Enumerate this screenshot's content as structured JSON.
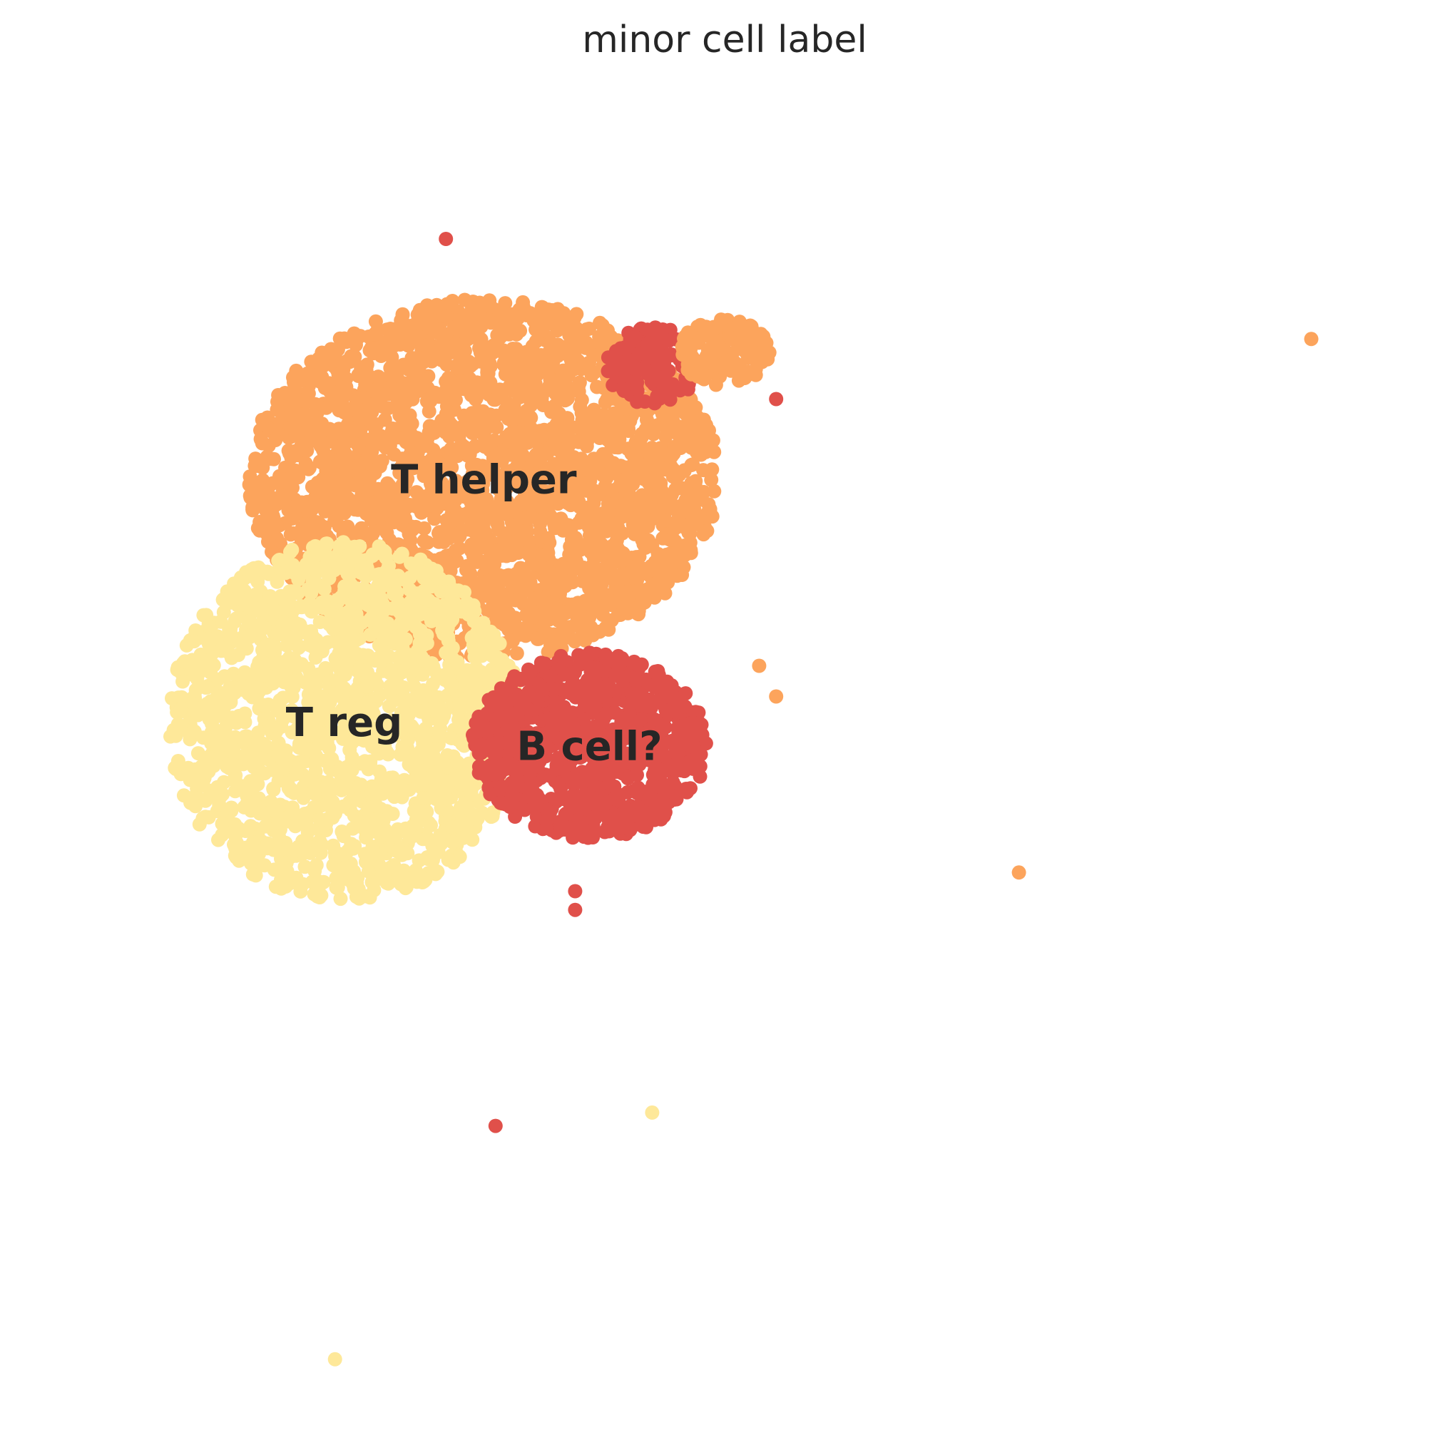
{
  "chart_data": {
    "type": "scatter",
    "title": "minor cell label",
    "xlabel": "",
    "ylabel": "",
    "xlim": [
      0,
      100
    ],
    "ylim": [
      0,
      100
    ],
    "grid": false,
    "axes_visible": false,
    "legend": "on-data",
    "colors": {
      "T helper": "#fca45c",
      "T reg": "#fee899",
      "B cell?": "#e0504a"
    },
    "clusters": [
      {
        "label": "T helper",
        "color": "#fca45c",
        "center": [
          31.6,
          70.5
        ],
        "spread": [
          18.0,
          13.5
        ],
        "count": 2600
      },
      {
        "label": "T reg",
        "color": "#fee899",
        "center": [
          20.9,
          52.3
        ],
        "spread": [
          13.5,
          13.5
        ],
        "count": 1700
      },
      {
        "label": "B cell?",
        "color": "#e0504a",
        "center": [
          39.7,
          50.5
        ],
        "spread": [
          9.0,
          7.0
        ],
        "count": 900
      },
      {
        "label": "B cell?",
        "color": "#e0504a",
        "center": [
          44.5,
          79.0
        ],
        "spread": [
          3.5,
          3.0
        ],
        "count": 120
      },
      {
        "label": "T helper",
        "color": "#fca45c",
        "center": [
          50.0,
          80.0
        ],
        "spread": [
          3.5,
          2.5
        ],
        "count": 120
      }
    ],
    "label_positions": [
      {
        "text": "T helper",
        "x": 31.6,
        "y": 70.5
      },
      {
        "text": "T reg",
        "x": 20.9,
        "y": 52.3
      },
      {
        "text": "B cell?",
        "x": 39.7,
        "y": 50.5
      }
    ],
    "outliers": [
      {
        "x": 95.0,
        "y": 81.0,
        "label": "T helper"
      },
      {
        "x": 72.6,
        "y": 41.0,
        "label": "T helper"
      },
      {
        "x": 52.7,
        "y": 56.5,
        "label": "T helper"
      },
      {
        "x": 54.0,
        "y": 54.2,
        "label": "T helper"
      },
      {
        "x": 44.5,
        "y": 23.0,
        "label": "T reg"
      },
      {
        "x": 20.2,
        "y": 4.5,
        "label": "T reg"
      },
      {
        "x": 32.5,
        "y": 22.0,
        "label": "B cell?"
      },
      {
        "x": 38.6,
        "y": 38.2,
        "label": "B cell?"
      },
      {
        "x": 38.6,
        "y": 39.6,
        "label": "B cell?"
      },
      {
        "x": 54.0,
        "y": 76.5,
        "label": "B cell?"
      },
      {
        "x": 28.7,
        "y": 88.5,
        "label": "B cell?"
      }
    ]
  }
}
